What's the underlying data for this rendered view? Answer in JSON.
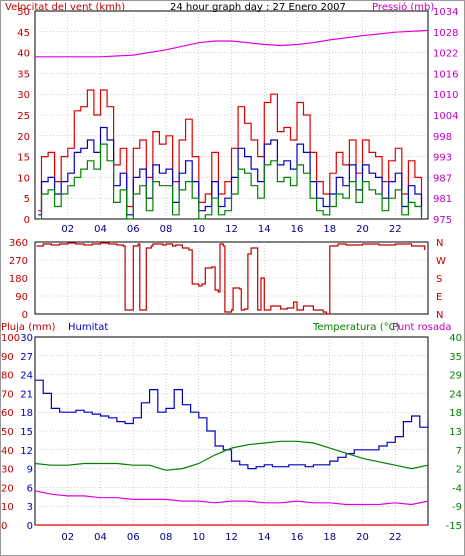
{
  "title": "24 hour graph day : 27 Enero 2007",
  "colors": {
    "red": "#e00000",
    "blue": "#0000c0",
    "green": "#008000",
    "magenta": "#e000e0",
    "darkred": "#c00000",
    "axis_red": "#c00000",
    "axis_blue": "#0000c0",
    "axis_green": "#008000",
    "axis_magenta": "#c000c0",
    "grid": "#a0a0a0"
  },
  "chart_data": [
    {
      "type": "line",
      "name": "wind-pressure",
      "title": "24 hour graph day : 27 Enero 2007",
      "left_axis_label": "Velocitat del vent (kmh)",
      "right_axis_label": "Pressió (mb)",
      "x_ticks": [
        "02",
        "04",
        "06",
        "08",
        "10",
        "12",
        "14",
        "16",
        "18",
        "20",
        "22"
      ],
      "y_left_ticks": [
        "0",
        "5",
        "10",
        "15",
        "20",
        "25",
        "30",
        "35",
        "40",
        "45",
        "50"
      ],
      "y_right_ticks": [
        "975",
        "981",
        "987",
        "993",
        "998",
        "1004",
        "1010",
        "1016",
        "1022",
        "1028",
        "1034"
      ],
      "xlim": [
        0,
        24
      ],
      "ylim_left": [
        0,
        50
      ],
      "ylim_right": [
        975,
        1034
      ],
      "grid": true,
      "series": [
        {
          "name": "Velocitat del vent",
          "color": "red",
          "axis": "left",
          "x": [
            0.2,
            0.4,
            0.8,
            1.2,
            1.6,
            2.0,
            2.4,
            2.8,
            3.2,
            3.6,
            4.0,
            4.4,
            4.8,
            5.2,
            5.6,
            6.0,
            6.4,
            6.8,
            7.2,
            7.6,
            8.0,
            8.4,
            8.8,
            9.2,
            9.6,
            10.0,
            10.4,
            10.8,
            11.2,
            11.6,
            12.0,
            12.4,
            12.8,
            13.2,
            13.6,
            14.0,
            14.4,
            14.8,
            15.2,
            15.6,
            16.0,
            16.4,
            16.8,
            17.2,
            17.6,
            18.0,
            18.4,
            18.8,
            19.2,
            19.6,
            20.0,
            20.4,
            20.8,
            21.2,
            21.6,
            22.0,
            22.4,
            22.8,
            23.2,
            23.6
          ],
          "values": [
            2,
            15,
            16,
            9,
            15,
            17,
            26,
            27,
            31,
            25,
            31,
            27,
            13,
            17,
            3,
            17,
            19,
            10,
            21,
            18,
            20,
            9,
            19,
            24,
            15,
            4,
            6,
            16,
            6,
            9,
            17,
            27,
            23,
            19,
            15,
            28,
            30,
            21,
            22,
            19,
            28,
            25,
            16,
            9,
            6,
            11,
            16,
            13,
            19,
            11,
            19,
            16,
            15,
            9,
            14,
            17,
            6,
            14,
            10,
            3
          ]
        },
        {
          "name": "Velocitat del vent (mitjana)",
          "color": "blue",
          "axis": "left",
          "x": [
            0.2,
            0.4,
            0.8,
            1.2,
            1.6,
            2.0,
            2.4,
            2.8,
            3.2,
            3.6,
            4.0,
            4.4,
            4.8,
            5.2,
            5.6,
            6.0,
            6.4,
            6.8,
            7.2,
            7.6,
            8.0,
            8.4,
            8.8,
            9.2,
            9.6,
            10.0,
            10.4,
            10.8,
            11.2,
            11.6,
            12.0,
            12.4,
            12.8,
            13.2,
            13.6,
            14.0,
            14.4,
            14.8,
            15.2,
            15.6,
            16.0,
            16.4,
            16.8,
            17.2,
            17.6,
            18.0,
            18.4,
            18.8,
            19.2,
            19.6,
            20.0,
            20.4,
            20.8,
            21.2,
            21.6,
            22.0,
            22.4,
            22.8,
            23.2,
            23.6
          ],
          "values": [
            1,
            9,
            10,
            6,
            9,
            11,
            16,
            17,
            19,
            16,
            22,
            19,
            8,
            11,
            1,
            10,
            12,
            5,
            13,
            11,
            12,
            4,
            11,
            14,
            9,
            2,
            3,
            9,
            3,
            5,
            10,
            17,
            15,
            12,
            9,
            18,
            19,
            13,
            14,
            12,
            18,
            16,
            9,
            5,
            3,
            6,
            10,
            8,
            13,
            7,
            13,
            11,
            10,
            5,
            9,
            11,
            3,
            8,
            6,
            1
          ]
        },
        {
          "name": "Velocitat del vent (mínima)",
          "color": "green",
          "axis": "left",
          "x": [
            0.2,
            0.4,
            0.8,
            1.2,
            1.6,
            2.0,
            2.4,
            2.8,
            3.2,
            3.6,
            4.0,
            4.4,
            4.8,
            5.2,
            5.6,
            6.0,
            6.4,
            6.8,
            7.2,
            7.6,
            8.0,
            8.4,
            8.8,
            9.2,
            9.6,
            10.0,
            10.4,
            10.8,
            11.2,
            11.6,
            12.0,
            12.4,
            12.8,
            13.2,
            13.6,
            14.0,
            14.4,
            14.8,
            15.2,
            15.6,
            16.0,
            16.4,
            16.8,
            17.2,
            17.6,
            18.0,
            18.4,
            18.8,
            19.2,
            19.6,
            20.0,
            20.4,
            20.8,
            21.2,
            21.6,
            22.0,
            22.4,
            22.8,
            23.2,
            23.6
          ],
          "values": [
            0,
            6,
            7,
            3,
            6,
            8,
            10,
            12,
            14,
            12,
            18,
            14,
            4,
            7,
            0,
            6,
            8,
            2,
            9,
            8,
            8,
            1,
            7,
            9,
            5,
            0,
            1,
            5,
            1,
            2,
            6,
            12,
            11,
            8,
            5,
            13,
            14,
            9,
            10,
            8,
            13,
            11,
            5,
            2,
            1,
            3,
            6,
            5,
            9,
            4,
            9,
            7,
            6,
            2,
            5,
            7,
            1,
            4,
            3,
            0
          ]
        },
        {
          "name": "Pressió",
          "color": "magenta",
          "axis": "right",
          "x": [
            0,
            2,
            4,
            6,
            8,
            10,
            11,
            12,
            13,
            14,
            15,
            16,
            17,
            18,
            20,
            22,
            24
          ],
          "values": [
            1021,
            1021,
            1021,
            1021.5,
            1023,
            1025,
            1025.5,
            1025.5,
            1025,
            1024.5,
            1024.2,
            1024.5,
            1025,
            1025.8,
            1027,
            1028,
            1028.5
          ]
        }
      ]
    },
    {
      "type": "line",
      "name": "wind-direction",
      "x_ticks": [
        "02",
        "04",
        "06",
        "08",
        "10",
        "12",
        "14",
        "16",
        "18",
        "20",
        "22"
      ],
      "y_left_ticks": [
        "0",
        "90",
        "180",
        "270",
        "360"
      ],
      "y_right_ticks": [
        "N",
        "E",
        "S",
        "W",
        "N"
      ],
      "xlim": [
        0,
        24
      ],
      "ylim": [
        0,
        360
      ],
      "grid": true,
      "series": [
        {
          "name": "Direcció del vent",
          "color": "darkred",
          "x": [
            0.1,
            0.5,
            1.0,
            1.5,
            2.0,
            2.5,
            3.0,
            3.5,
            4.0,
            4.5,
            5.0,
            5.4,
            5.5,
            5.9,
            6.0,
            6.3,
            6.4,
            6.7,
            6.8,
            7.1,
            7.2,
            7.8,
            8.0,
            8.4,
            8.6,
            9.0,
            9.4,
            9.6,
            10.0,
            10.2,
            10.4,
            10.8,
            11.0,
            11.2,
            11.3,
            11.5,
            11.6,
            12.0,
            12.1,
            12.5,
            12.6,
            12.8,
            13.0,
            13.2,
            13.6,
            13.8,
            14.0,
            14.4,
            15.0,
            15.4,
            15.8,
            16.0,
            16.4,
            17.0,
            17.6,
            17.8,
            18.0,
            18.5,
            19.0,
            20.0,
            21.0,
            22.0,
            23.0,
            23.8
          ],
          "values": [
            340,
            350,
            345,
            350,
            355,
            350,
            345,
            350,
            355,
            350,
            345,
            340,
            20,
            20,
            340,
            350,
            20,
            20,
            330,
            340,
            350,
            345,
            350,
            340,
            345,
            330,
            320,
            150,
            140,
            150,
            230,
            235,
            120,
            110,
            350,
            340,
            10,
            20,
            130,
            125,
            20,
            25,
            300,
            330,
            20,
            180,
            20,
            40,
            25,
            30,
            60,
            20,
            40,
            20,
            10,
            0,
            340,
            350,
            345,
            350,
            345,
            350,
            340,
            320
          ]
        }
      ]
    },
    {
      "type": "line",
      "name": "rain-humidity-temperature",
      "left_axis_label_1": "Pluja (mm)",
      "left_axis_label_2": "Humitat",
      "right_axis_label_1": "Temperatura (°C)",
      "right_axis_label_2": "Punt rosada",
      "x_ticks": [
        "02",
        "04",
        "06",
        "08",
        "10",
        "12",
        "14",
        "16",
        "18",
        "20",
        "22"
      ],
      "y_rain_ticks": [
        "0",
        "10",
        "20",
        "30",
        "40",
        "50",
        "60",
        "70",
        "80",
        "90",
        "100"
      ],
      "y_hum_ticks": [
        "0",
        "3",
        "6",
        "9",
        "12",
        "15",
        "18",
        "21",
        "24",
        "27",
        "30"
      ],
      "y_temp_ticks": [
        "-15",
        "-9",
        "-4",
        "2",
        "7",
        "13",
        "18",
        "24",
        "29",
        "35",
        "40"
      ],
      "xlim": [
        0,
        24
      ],
      "ylim_humidity": [
        0,
        100
      ],
      "ylim_temperature": [
        -15,
        40
      ],
      "grid": true,
      "series": [
        {
          "name": "Humitat",
          "color": "blue",
          "axis": "humidity",
          "x": [
            0,
            0.5,
            1,
            1.5,
            2,
            2.5,
            3,
            3.5,
            4,
            4.5,
            5,
            5.5,
            6,
            6.5,
            7,
            7.5,
            8,
            8.5,
            9,
            9.5,
            10,
            10.5,
            11,
            11.5,
            12,
            12.5,
            13,
            13.5,
            14,
            14.5,
            15,
            15.5,
            16,
            16.5,
            17,
            17.5,
            18,
            18.5,
            19,
            19.5,
            20,
            20.5,
            21,
            21.5,
            22,
            22.5,
            23,
            23.5,
            24
          ],
          "values": [
            77,
            70,
            62,
            60,
            60,
            61,
            60,
            59,
            58,
            57,
            55,
            54,
            57,
            65,
            72,
            60,
            62,
            72,
            64,
            60,
            57,
            50,
            42,
            40,
            34,
            32,
            30,
            31,
            32,
            31,
            31,
            32,
            32,
            31,
            32,
            32,
            34,
            36,
            38,
            40,
            40,
            40,
            42,
            44,
            47,
            55,
            58,
            52,
            56
          ]
        },
        {
          "name": "Temperatura",
          "color": "green",
          "axis": "temperature",
          "x": [
            0,
            1,
            2,
            3,
            4,
            5,
            6,
            7,
            8,
            9,
            10,
            11,
            12,
            13,
            14,
            15,
            16,
            17,
            18,
            19,
            20,
            21,
            22,
            23,
            24
          ],
          "values": [
            3,
            2.5,
            2.5,
            3,
            3,
            3,
            2.5,
            2.5,
            1,
            1.5,
            3,
            5.5,
            7.5,
            8.5,
            9,
            9.5,
            9.5,
            9,
            7.5,
            6,
            4.5,
            3.5,
            2.5,
            1.5,
            2.5
          ]
        },
        {
          "name": "Punt rosada",
          "color": "magenta",
          "axis": "temperature",
          "x": [
            0,
            1,
            2,
            3,
            4,
            5,
            6,
            7,
            8,
            9,
            10,
            11,
            12,
            13,
            14,
            15,
            16,
            17,
            18,
            19,
            20,
            21,
            22,
            23,
            24
          ],
          "values": [
            -5,
            -6,
            -6.5,
            -6.5,
            -7,
            -7,
            -7.5,
            -7.5,
            -7.5,
            -8,
            -8,
            -8.5,
            -8,
            -8,
            -8.5,
            -8.5,
            -8,
            -8.5,
            -8.5,
            -9,
            -9,
            -9,
            -8.5,
            -9,
            -8
          ]
        },
        {
          "name": "Pluja",
          "color": "red",
          "axis": "rain",
          "x": [
            0,
            24
          ],
          "values": [
            0,
            0
          ]
        }
      ]
    }
  ]
}
